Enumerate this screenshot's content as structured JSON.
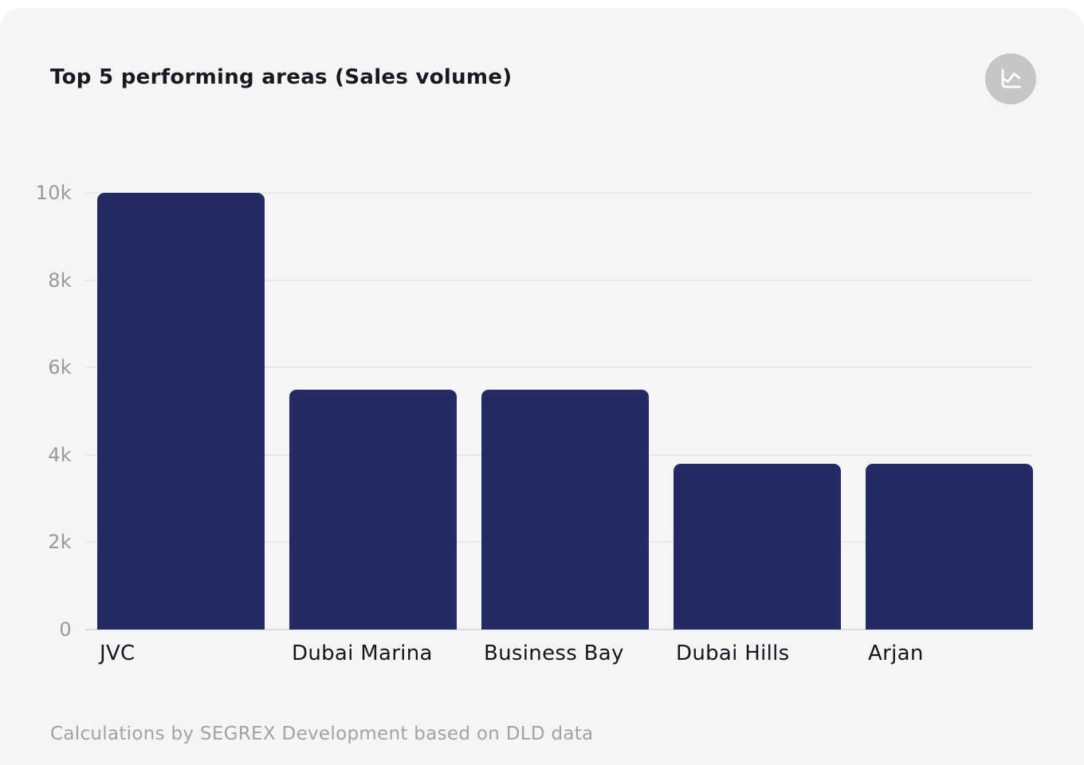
{
  "header": {
    "title": "Top 5 performing areas (Sales volume)",
    "icon_button": "trend-chart"
  },
  "chart_data": {
    "type": "bar",
    "title": "Top 5 performing areas (Sales volume)",
    "categories": [
      "JVC",
      "Dubai Marina",
      "Business Bay",
      "Dubai Hills",
      "Arjan"
    ],
    "values": [
      10000,
      5500,
      5500,
      3800,
      3800
    ],
    "xlabel": "",
    "ylabel": "",
    "ylim": [
      0,
      10000
    ],
    "y_ticks": [
      {
        "value": 0,
        "label": "0"
      },
      {
        "value": 2000,
        "label": "2k"
      },
      {
        "value": 4000,
        "label": "4k"
      },
      {
        "value": 6000,
        "label": "6k"
      },
      {
        "value": 8000,
        "label": "8k"
      },
      {
        "value": 10000,
        "label": "10k"
      }
    ],
    "grid": "horizontal",
    "legend": "none",
    "bar_color": "#242a64"
  },
  "footer": {
    "caption": "Calculations by SEGREX Development based on DLD data"
  },
  "colors": {
    "page_background": "#ffffff",
    "card_background": "#f5f5f6",
    "bar": "#242a64",
    "title_text": "#191923",
    "axis_text": "#98989d",
    "footer_text": "#a2a2a6",
    "gridline": "#e9e9ec",
    "icon_circle": "#c6c6c8"
  }
}
